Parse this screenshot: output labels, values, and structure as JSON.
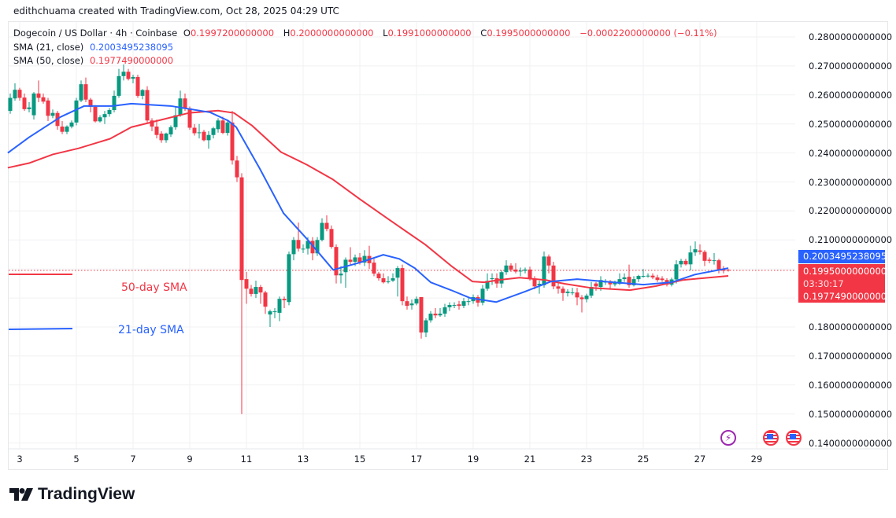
{
  "credit": "edithchuama created with TradingView.com, Oct 28, 2025 04:29 UTC",
  "legend": {
    "symbol": "Dogecoin / US Dollar · 4h · Coinbase",
    "o_label": "O",
    "o": "0.1997200000000",
    "h_label": "H",
    "h": "0.2000000000000",
    "l_label": "L",
    "l": "0.1991000000000",
    "c_label": "C",
    "c": "0.1995000000000",
    "change": "−0.0002200000000 (−0.11%)",
    "sma21_label": "SMA (21, close)",
    "sma21_value": "0.2003495238095",
    "sma50_label": "SMA (50, close)",
    "sma50_value": "0.1977490000000"
  },
  "annotations": {
    "sma50": "50-day SMA",
    "sma21": "21-day SMA"
  },
  "price_labels": {
    "sma21": "0.2003495238095",
    "last": "0.1995000000000",
    "countdown": "03:30:17",
    "sma50": "0.1977490000000"
  },
  "colors": {
    "up": "#089981",
    "down": "#f23645",
    "sma21": "#2962ff",
    "sma50": "#f23645"
  },
  "icons": [
    "lightning-event-icon",
    "us-flag-event-icon",
    "us-flag-event-icon"
  ],
  "logo": "TradingView",
  "chart_data": {
    "type": "candlestick",
    "interval": "4h",
    "y_ticks": [
      "0.2800000000000",
      "0.2700000000000",
      "0.2600000000000",
      "0.2500000000000",
      "0.2400000000000",
      "0.2300000000000",
      "0.2200000000000",
      "0.2100000000000",
      "0.1800000000000",
      "0.1700000000000",
      "0.1600000000000",
      "0.1500000000000",
      "0.1400000000000"
    ],
    "y_tick_values": [
      0.28,
      0.27,
      0.26,
      0.25,
      0.24,
      0.23,
      0.22,
      0.21,
      0.18,
      0.17,
      0.16,
      0.15,
      0.14
    ],
    "ylim": [
      0.14,
      0.28
    ],
    "x_ticks": [
      "3",
      "5",
      "7",
      "9",
      "11",
      "13",
      "15",
      "17",
      "19",
      "21",
      "23",
      "25",
      "27",
      "29"
    ],
    "last_price": 0.1995,
    "candles_ohlc": [
      [
        0.2545,
        0.2605,
        0.2535,
        0.259
      ],
      [
        0.2588,
        0.264,
        0.258,
        0.2618
      ],
      [
        0.2618,
        0.2625,
        0.258,
        0.259
      ],
      [
        0.2591,
        0.2605,
        0.2545,
        0.2551
      ],
      [
        0.2551,
        0.2575,
        0.254,
        0.2557
      ],
      [
        0.253,
        0.261,
        0.2515,
        0.2605
      ],
      [
        0.2605,
        0.265,
        0.2575,
        0.259
      ],
      [
        0.2592,
        0.2605,
        0.257,
        0.2577
      ],
      [
        0.2581,
        0.259,
        0.251,
        0.2528
      ],
      [
        0.2528,
        0.255,
        0.252,
        0.2538
      ],
      [
        0.2538,
        0.2545,
        0.248,
        0.2493
      ],
      [
        0.2491,
        0.251,
        0.2465,
        0.2473
      ],
      [
        0.2473,
        0.2495,
        0.2465,
        0.2491
      ],
      [
        0.2491,
        0.2512,
        0.2485,
        0.2505
      ],
      [
        0.2505,
        0.259,
        0.2495,
        0.2581
      ],
      [
        0.2581,
        0.265,
        0.2575,
        0.2637
      ],
      [
        0.2637,
        0.266,
        0.2575,
        0.2584
      ],
      [
        0.2584,
        0.259,
        0.254,
        0.2559
      ],
      [
        0.2559,
        0.2565,
        0.2505,
        0.2509
      ],
      [
        0.2509,
        0.253,
        0.2505,
        0.2523
      ],
      [
        0.2523,
        0.2545,
        0.25,
        0.2534
      ],
      [
        0.2534,
        0.2555,
        0.2525,
        0.2548
      ],
      [
        0.2548,
        0.2615,
        0.254,
        0.2597
      ],
      [
        0.2597,
        0.269,
        0.259,
        0.2665
      ],
      [
        0.2665,
        0.2705,
        0.265,
        0.268
      ],
      [
        0.268,
        0.269,
        0.265,
        0.2655
      ],
      [
        0.2656,
        0.267,
        0.264,
        0.2662
      ],
      [
        0.2662,
        0.267,
        0.259,
        0.2597
      ],
      [
        0.2597,
        0.262,
        0.2585,
        0.2617
      ],
      [
        0.2617,
        0.263,
        0.2505,
        0.2512
      ],
      [
        0.2512,
        0.252,
        0.2475,
        0.2491
      ],
      [
        0.2491,
        0.2515,
        0.245,
        0.2462
      ],
      [
        0.2467,
        0.2475,
        0.2435,
        0.2444
      ],
      [
        0.2444,
        0.247,
        0.2435,
        0.2467
      ],
      [
        0.2464,
        0.2495,
        0.2455,
        0.2489
      ],
      [
        0.2489,
        0.256,
        0.248,
        0.253
      ],
      [
        0.253,
        0.2615,
        0.2525,
        0.2588
      ],
      [
        0.2588,
        0.2605,
        0.2545,
        0.2552
      ],
      [
        0.2554,
        0.256,
        0.248,
        0.2487
      ],
      [
        0.2487,
        0.25,
        0.246,
        0.2468
      ],
      [
        0.2471,
        0.25,
        0.245,
        0.2471
      ],
      [
        0.2473,
        0.248,
        0.244,
        0.2444
      ],
      [
        0.2444,
        0.2475,
        0.2415,
        0.2462
      ],
      [
        0.2462,
        0.249,
        0.245,
        0.2485
      ],
      [
        0.2482,
        0.252,
        0.247,
        0.2512
      ],
      [
        0.2512,
        0.2525,
        0.2465,
        0.2469
      ],
      [
        0.2469,
        0.2515,
        0.246,
        0.2505
      ],
      [
        0.2505,
        0.2545,
        0.236,
        0.2374
      ],
      [
        0.2374,
        0.239,
        0.23,
        0.2316
      ],
      [
        0.2316,
        0.233,
        0.15,
        0.1962
      ],
      [
        0.1965,
        0.199,
        0.188,
        0.1932
      ],
      [
        0.1932,
        0.1945,
        0.1905,
        0.1914
      ],
      [
        0.1914,
        0.196,
        0.19,
        0.1938
      ],
      [
        0.1938,
        0.1945,
        0.188,
        0.1919
      ],
      [
        0.1919,
        0.1925,
        0.1845,
        0.187
      ],
      [
        0.1843,
        0.186,
        0.18,
        0.1854
      ],
      [
        0.1854,
        0.1865,
        0.183,
        0.1854
      ],
      [
        0.1849,
        0.1905,
        0.182,
        0.1897
      ],
      [
        0.1897,
        0.1905,
        0.1865,
        0.1892
      ],
      [
        0.1886,
        0.206,
        0.1875,
        0.2051
      ],
      [
        0.2051,
        0.211,
        0.203,
        0.21
      ],
      [
        0.21,
        0.216,
        0.206,
        0.207
      ],
      [
        0.207,
        0.2085,
        0.2055,
        0.207
      ],
      [
        0.207,
        0.211,
        0.205,
        0.2097
      ],
      [
        0.2097,
        0.211,
        0.203,
        0.2054
      ],
      [
        0.2054,
        0.211,
        0.2045,
        0.21
      ],
      [
        0.21,
        0.2175,
        0.2095,
        0.2159
      ],
      [
        0.2159,
        0.2185,
        0.213,
        0.2138
      ],
      [
        0.2138,
        0.215,
        0.207,
        0.2076
      ],
      [
        0.2076,
        0.2085,
        0.195,
        0.1978
      ],
      [
        0.1978,
        0.201,
        0.195,
        0.1984
      ],
      [
        0.1989,
        0.204,
        0.1935,
        0.2032
      ],
      [
        0.2032,
        0.2075,
        0.2015,
        0.2025
      ],
      [
        0.2025,
        0.205,
        0.201,
        0.204
      ],
      [
        0.204,
        0.2055,
        0.2015,
        0.2022
      ],
      [
        0.2022,
        0.2065,
        0.201,
        0.2045
      ],
      [
        0.2045,
        0.208,
        0.2,
        0.202
      ],
      [
        0.2022,
        0.2035,
        0.1975,
        0.1984
      ],
      [
        0.1984,
        0.199,
        0.196,
        0.1968
      ],
      [
        0.1968,
        0.1985,
        0.195,
        0.1954
      ],
      [
        0.1957,
        0.1975,
        0.195,
        0.1957
      ],
      [
        0.196,
        0.1985,
        0.1955,
        0.1968
      ],
      [
        0.197,
        0.201,
        0.1905,
        0.2003
      ],
      [
        0.2003,
        0.2015,
        0.1875,
        0.1889
      ],
      [
        0.1889,
        0.1905,
        0.186,
        0.1873
      ],
      [
        0.1875,
        0.1895,
        0.186,
        0.1881
      ],
      [
        0.1881,
        0.1905,
        0.1875,
        0.1897
      ],
      [
        0.1903,
        0.1903,
        0.176,
        0.1781
      ],
      [
        0.1781,
        0.183,
        0.1765,
        0.1823
      ],
      [
        0.1823,
        0.1855,
        0.1815,
        0.1846
      ],
      [
        0.1846,
        0.1865,
        0.183,
        0.184
      ],
      [
        0.184,
        0.1865,
        0.1835,
        0.1846
      ],
      [
        0.1846,
        0.188,
        0.1835,
        0.1868
      ],
      [
        0.1868,
        0.1885,
        0.1855,
        0.1876
      ],
      [
        0.1876,
        0.1885,
        0.1865,
        0.1876
      ],
      [
        0.1878,
        0.189,
        0.186,
        0.1873
      ],
      [
        0.1873,
        0.19,
        0.1865,
        0.1889
      ],
      [
        0.1889,
        0.19,
        0.1875,
        0.1889
      ],
      [
        0.1889,
        0.1912,
        0.188,
        0.1903
      ],
      [
        0.1903,
        0.191,
        0.187,
        0.1884
      ],
      [
        0.1884,
        0.1945,
        0.1875,
        0.1932
      ],
      [
        0.1932,
        0.1985,
        0.1925,
        0.1959
      ],
      [
        0.1967,
        0.1985,
        0.1945,
        0.1968
      ],
      [
        0.1968,
        0.1985,
        0.1935,
        0.195
      ],
      [
        0.195,
        0.1995,
        0.1935,
        0.1989
      ],
      [
        0.1989,
        0.203,
        0.198,
        0.2012
      ],
      [
        0.2012,
        0.202,
        0.199,
        0.1998
      ],
      [
        0.1998,
        0.202,
        0.1985,
        0.1991
      ],
      [
        0.1994,
        0.2005,
        0.1975,
        0.1994
      ],
      [
        0.1994,
        0.2005,
        0.1985,
        0.1998
      ],
      [
        0.1998,
        0.2008,
        0.196,
        0.1967
      ],
      [
        0.1967,
        0.1975,
        0.193,
        0.194
      ],
      [
        0.1944,
        0.196,
        0.1915,
        0.1949
      ],
      [
        0.1944,
        0.206,
        0.1935,
        0.2043
      ],
      [
        0.2043,
        0.205,
        0.1985,
        0.2012
      ],
      [
        0.2012,
        0.2025,
        0.193,
        0.194
      ],
      [
        0.194,
        0.1955,
        0.1915,
        0.1932
      ],
      [
        0.1932,
        0.194,
        0.189,
        0.1917
      ],
      [
        0.1917,
        0.193,
        0.1905,
        0.1922
      ],
      [
        0.1917,
        0.1935,
        0.191,
        0.1919
      ],
      [
        0.1919,
        0.1935,
        0.1875,
        0.1902
      ],
      [
        0.1902,
        0.191,
        0.185,
        0.1896
      ],
      [
        0.1896,
        0.1915,
        0.1885,
        0.1908
      ],
      [
        0.1908,
        0.1955,
        0.19,
        0.1938
      ],
      [
        0.195,
        0.1955,
        0.1925,
        0.194
      ],
      [
        0.1938,
        0.1975,
        0.1925,
        0.1962
      ],
      [
        0.1956,
        0.1965,
        0.1945,
        0.1956
      ],
      [
        0.1958,
        0.1962,
        0.193,
        0.1947
      ],
      [
        0.1947,
        0.196,
        0.194,
        0.1953
      ],
      [
        0.1949,
        0.1985,
        0.1945,
        0.1965
      ],
      [
        0.1965,
        0.1985,
        0.1955,
        0.1971
      ],
      [
        0.1973,
        0.2015,
        0.1935,
        0.1944
      ],
      [
        0.1944,
        0.1975,
        0.194,
        0.1965
      ],
      [
        0.1965,
        0.198,
        0.1955,
        0.1976
      ],
      [
        0.1976,
        0.2,
        0.197,
        0.1976
      ],
      [
        0.1977,
        0.1985,
        0.197,
        0.1977
      ],
      [
        0.1977,
        0.1985,
        0.1965,
        0.1971
      ],
      [
        0.1971,
        0.198,
        0.1955,
        0.1962
      ],
      [
        0.1967,
        0.1975,
        0.1955,
        0.1962
      ],
      [
        0.1962,
        0.1968,
        0.194,
        0.1946
      ],
      [
        0.1946,
        0.197,
        0.194,
        0.1964
      ],
      [
        0.1964,
        0.203,
        0.195,
        0.2016
      ],
      [
        0.2016,
        0.2035,
        0.2005,
        0.2028
      ],
      [
        0.2028,
        0.2035,
        0.2012,
        0.2016
      ],
      [
        0.2016,
        0.208,
        0.1995,
        0.2057
      ],
      [
        0.2057,
        0.2095,
        0.2045,
        0.2068
      ],
      [
        0.2064,
        0.2085,
        0.205,
        0.2059
      ],
      [
        0.2059,
        0.2065,
        0.201,
        0.2028
      ],
      [
        0.2032,
        0.204,
        0.202,
        0.2028
      ],
      [
        0.203,
        0.2055,
        0.2015,
        0.203
      ],
      [
        0.203,
        0.2035,
        0.1985,
        0.1998
      ],
      [
        0.1998,
        0.201,
        0.1985,
        0.1994
      ],
      [
        0.19972,
        0.2,
        0.1991,
        0.1995
      ]
    ],
    "sma21_points_oct_day_value": [
      [
        2.58,
        0.24
      ],
      [
        3.33,
        0.2454
      ],
      [
        4.44,
        0.2524
      ],
      [
        5.28,
        0.2562
      ],
      [
        6.28,
        0.2562
      ],
      [
        6.94,
        0.257
      ],
      [
        8.33,
        0.2562
      ],
      [
        9.72,
        0.254
      ],
      [
        10.36,
        0.2511
      ],
      [
        10.64,
        0.2489
      ],
      [
        11.47,
        0.2346
      ],
      [
        12.31,
        0.2192
      ],
      [
        13.14,
        0.2103
      ],
      [
        14.06,
        0.1997
      ],
      [
        15.0,
        0.2022
      ],
      [
        15.83,
        0.2049
      ],
      [
        16.39,
        0.2035
      ],
      [
        16.94,
        0.2003
      ],
      [
        17.5,
        0.1954
      ],
      [
        18.22,
        0.1927
      ],
      [
        18.89,
        0.19
      ],
      [
        19.81,
        0.1886
      ],
      [
        20.83,
        0.1922
      ],
      [
        21.75,
        0.1957
      ],
      [
        22.67,
        0.1965
      ],
      [
        23.61,
        0.1957
      ],
      [
        25.0,
        0.1946
      ],
      [
        26.0,
        0.1954
      ],
      [
        26.83,
        0.1981
      ],
      [
        28.0,
        0.2003
      ]
    ],
    "sma50_points_oct_day_value": [
      [
        2.58,
        0.2349
      ],
      [
        3.33,
        0.2365
      ],
      [
        4.17,
        0.2395
      ],
      [
        5.08,
        0.2416
      ],
      [
        6.19,
        0.2449
      ],
      [
        6.94,
        0.2489
      ],
      [
        7.86,
        0.2511
      ],
      [
        8.97,
        0.2538
      ],
      [
        10.0,
        0.2546
      ],
      [
        10.56,
        0.2538
      ],
      [
        11.19,
        0.2495
      ],
      [
        12.22,
        0.2403
      ],
      [
        13.14,
        0.2359
      ],
      [
        14.06,
        0.2308
      ],
      [
        15.0,
        0.2241
      ],
      [
        15.92,
        0.2178
      ],
      [
        16.39,
        0.2146
      ],
      [
        17.31,
        0.2084
      ],
      [
        18.22,
        0.2011
      ],
      [
        18.97,
        0.1957
      ],
      [
        19.39,
        0.1954
      ],
      [
        19.89,
        0.1962
      ],
      [
        20.64,
        0.197
      ],
      [
        21.56,
        0.1962
      ],
      [
        22.22,
        0.1949
      ],
      [
        23.14,
        0.1935
      ],
      [
        24.53,
        0.1927
      ],
      [
        25.44,
        0.1941
      ],
      [
        26.39,
        0.1962
      ],
      [
        28.0,
        0.1976
      ]
    ]
  }
}
